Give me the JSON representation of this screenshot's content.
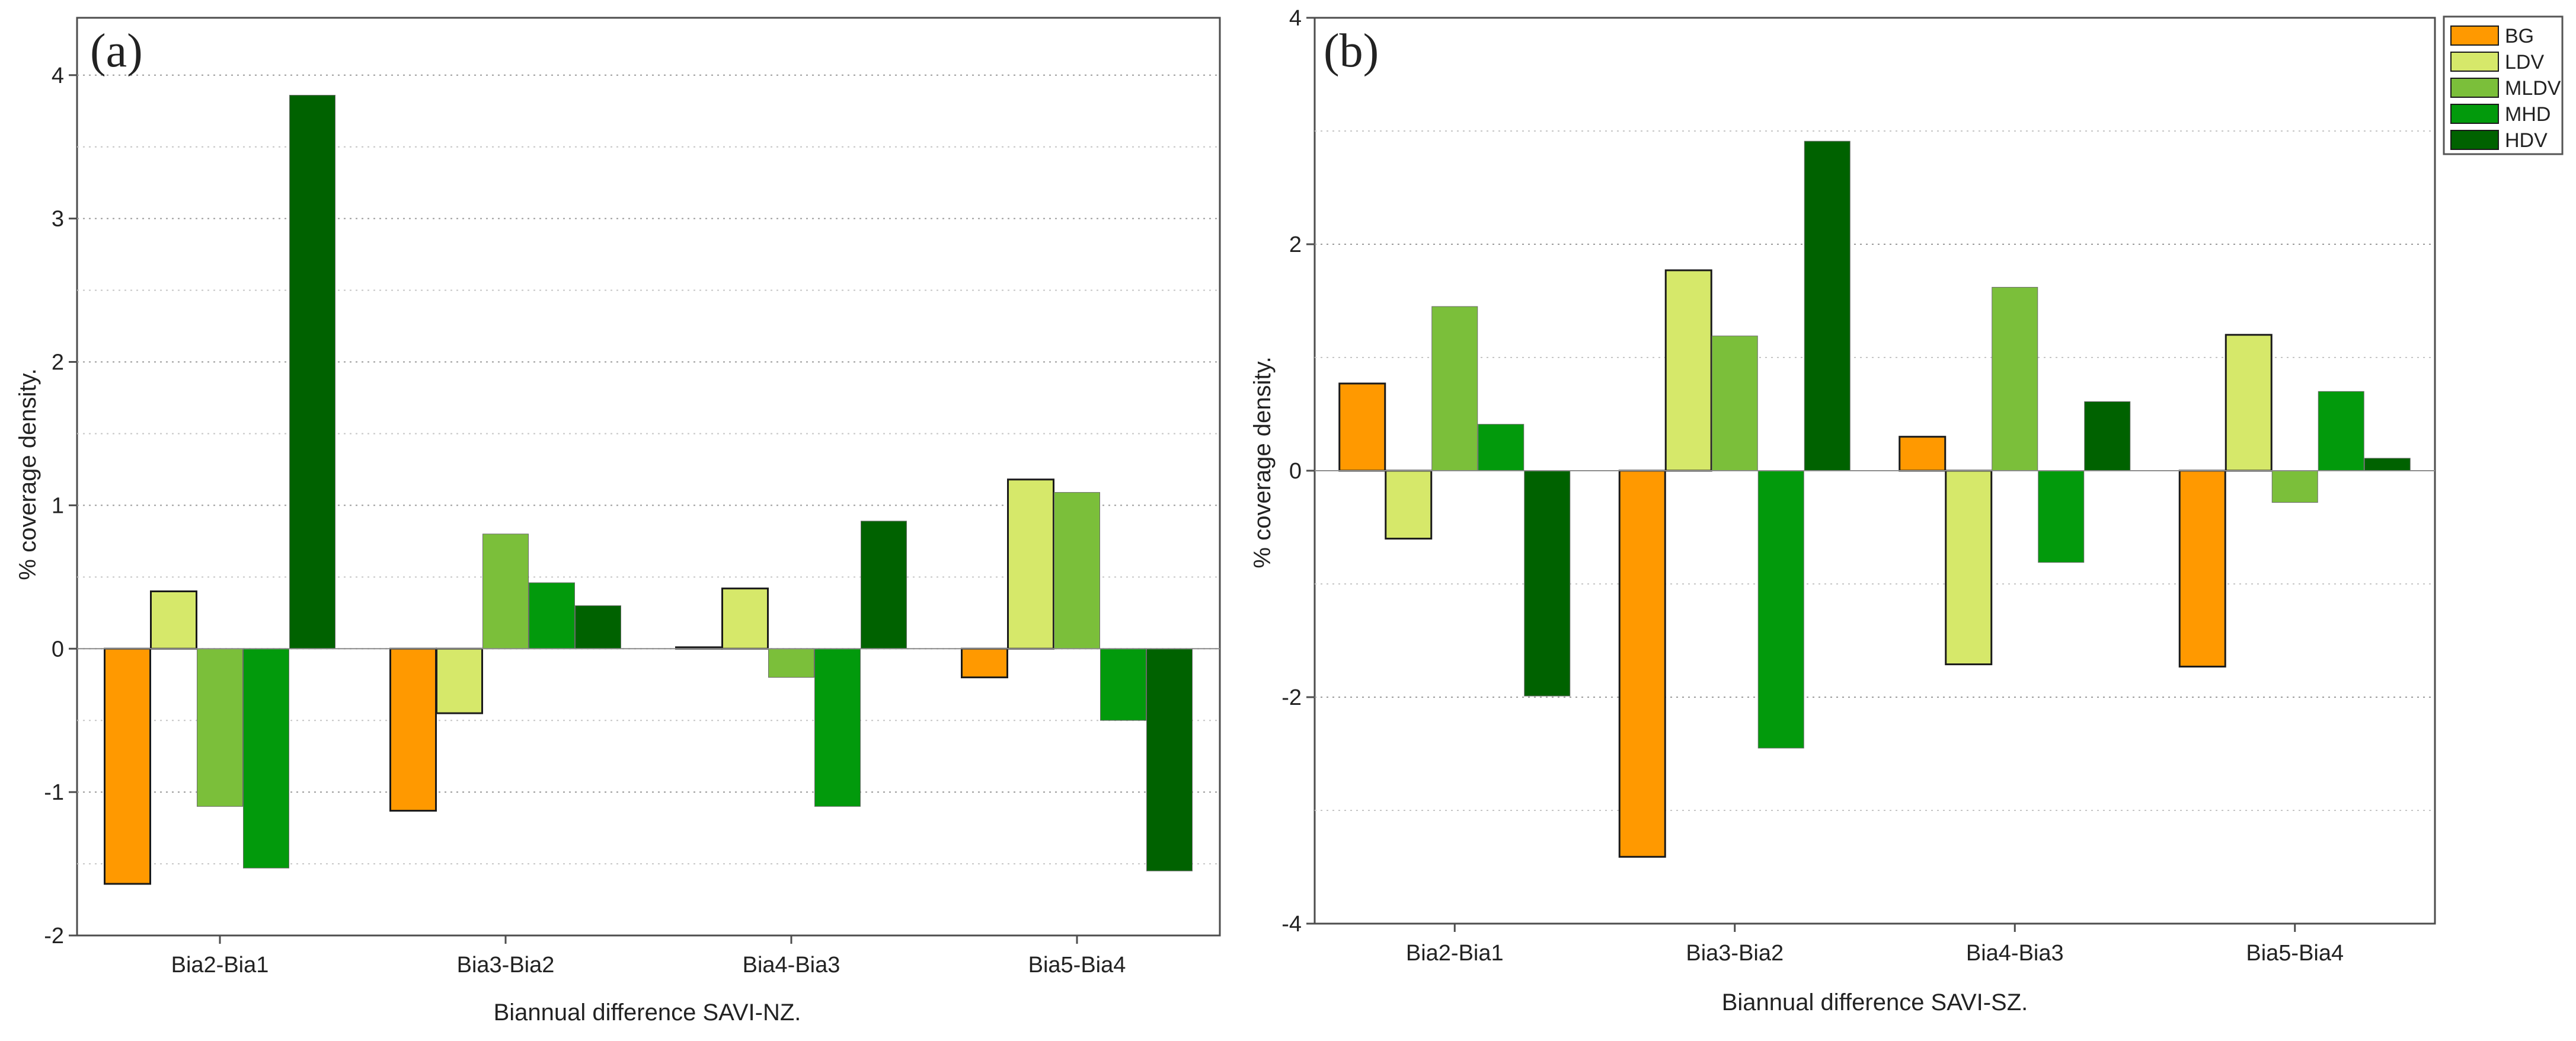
{
  "series_names": [
    "BG",
    "LDV",
    "MLDV",
    "MHD",
    "HDV"
  ],
  "colors": {
    "BG": "#FF9900",
    "LDV": "#D6E86A",
    "MLDV": "#7BBF3A",
    "MHD": "#029A0C",
    "HDV": "#006200",
    "axis": "#4d4d4d",
    "grid": "#9a9a9a"
  },
  "legend": {
    "items": [
      "BG",
      "LDV",
      "MLDV",
      "MHD",
      "HDV"
    ]
  },
  "chart_data": [
    {
      "type": "bar",
      "panel_label": "(a)",
      "title": "",
      "xlabel": "Biannual difference SAVI-NZ.",
      "ylabel": "% coverage density.",
      "categories": [
        "Bia2-Bia1",
        "Bia3-Bia2",
        "Bia4-Bia3",
        "Bia5-Bia4"
      ],
      "ylim": [
        -2,
        4.4
      ],
      "yticks": [
        -2,
        -1,
        0,
        1,
        2,
        3,
        4
      ],
      "grid": true,
      "series": [
        {
          "name": "BG",
          "values": [
            -1.64,
            -1.13,
            0.01,
            -0.2
          ]
        },
        {
          "name": "LDV",
          "values": [
            0.4,
            -0.45,
            0.42,
            1.18
          ]
        },
        {
          "name": "MLDV",
          "values": [
            -1.1,
            0.8,
            -0.2,
            1.09
          ]
        },
        {
          "name": "MHD",
          "values": [
            -1.53,
            0.46,
            -1.1,
            -0.5
          ]
        },
        {
          "name": "HDV",
          "values": [
            3.86,
            0.3,
            0.89,
            -1.55
          ]
        }
      ]
    },
    {
      "type": "bar",
      "panel_label": "(b)",
      "title": "",
      "xlabel": "Biannual difference  SAVI-SZ.",
      "ylabel": "% coverage density.",
      "categories": [
        "Bia2-Bia1",
        "Bia3-Bia2",
        "Bia4-Bia3",
        "Bia5-Bia4"
      ],
      "ylim": [
        -4,
        4
      ],
      "yticks": [
        -4,
        -2,
        0,
        2,
        4
      ],
      "grid": true,
      "series": [
        {
          "name": "BG",
          "values": [
            0.77,
            -3.41,
            0.3,
            -1.73
          ]
        },
        {
          "name": "LDV",
          "values": [
            -0.6,
            1.77,
            -1.71,
            1.2
          ]
        },
        {
          "name": "MLDV",
          "values": [
            1.45,
            1.19,
            1.62,
            -0.28
          ]
        },
        {
          "name": "MHD",
          "values": [
            0.41,
            -2.45,
            -0.81,
            0.7
          ]
        },
        {
          "name": "HDV",
          "values": [
            -1.99,
            2.91,
            0.61,
            0.11
          ]
        }
      ]
    }
  ]
}
